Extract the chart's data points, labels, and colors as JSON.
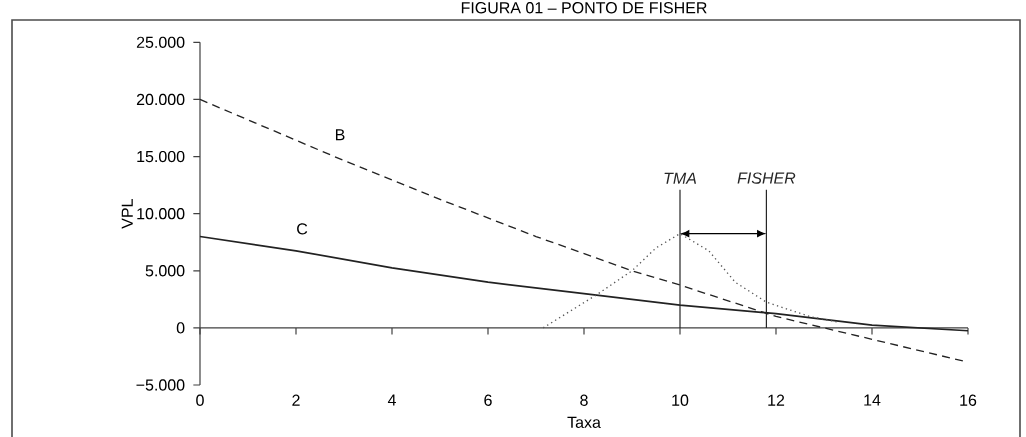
{
  "chart_data": {
    "type": "line",
    "title": "FIGURA 01 – PONTO DE FISHER",
    "xlabel": "Taxa",
    "ylabel": "VPL",
    "xlim": [
      0,
      16
    ],
    "xticks": [
      0,
      2,
      4,
      6,
      8,
      10,
      12,
      14,
      16
    ],
    "ylim": [
      -5000,
      25000
    ],
    "yticks": [
      {
        "value": -5000,
        "label": "−5.000"
      },
      0,
      {
        "value": 5000,
        "label": "5.000"
      },
      {
        "value": 10000,
        "label": "10.000"
      },
      {
        "value": 15000,
        "label": "15.000"
      },
      {
        "value": 20000,
        "label": "20.000"
      },
      {
        "value": 25000,
        "label": "25.000"
      }
    ],
    "marker": "none",
    "series": [
      {
        "name": "B",
        "line_style": "dashed",
        "color": "#222222",
        "x": [
          0,
          2.8,
          5,
          7,
          9,
          10,
          12,
          14,
          16
        ],
        "values": [
          20000,
          15000,
          11250,
          8000,
          5000,
          3750,
          1000,
          -1000,
          -3000
        ]
      },
      {
        "name": "C",
        "line_style": "solid",
        "color": "#222222",
        "x": [
          0,
          2,
          4,
          6,
          8,
          10,
          12,
          14,
          16
        ],
        "values": [
          8000,
          6750,
          5250,
          4000,
          3000,
          2000,
          1250,
          250,
          -250
        ]
      },
      {
        "line_style": "dotted",
        "color": "#555555",
        "x": [
          7.15,
          8.3,
          9,
          9.5,
          10,
          10.6,
          11.15,
          11.8,
          12.7,
          13.3
        ],
        "values": [
          0,
          3000,
          5000,
          7000,
          8250,
          6750,
          4000,
          2250,
          1000,
          500
        ]
      }
    ],
    "ref_lines": [
      {
        "axis": "x",
        "value": 10,
        "label": "TMA"
      },
      {
        "axis": "x",
        "value": 11.8,
        "label": "FISHER"
      }
    ]
  }
}
